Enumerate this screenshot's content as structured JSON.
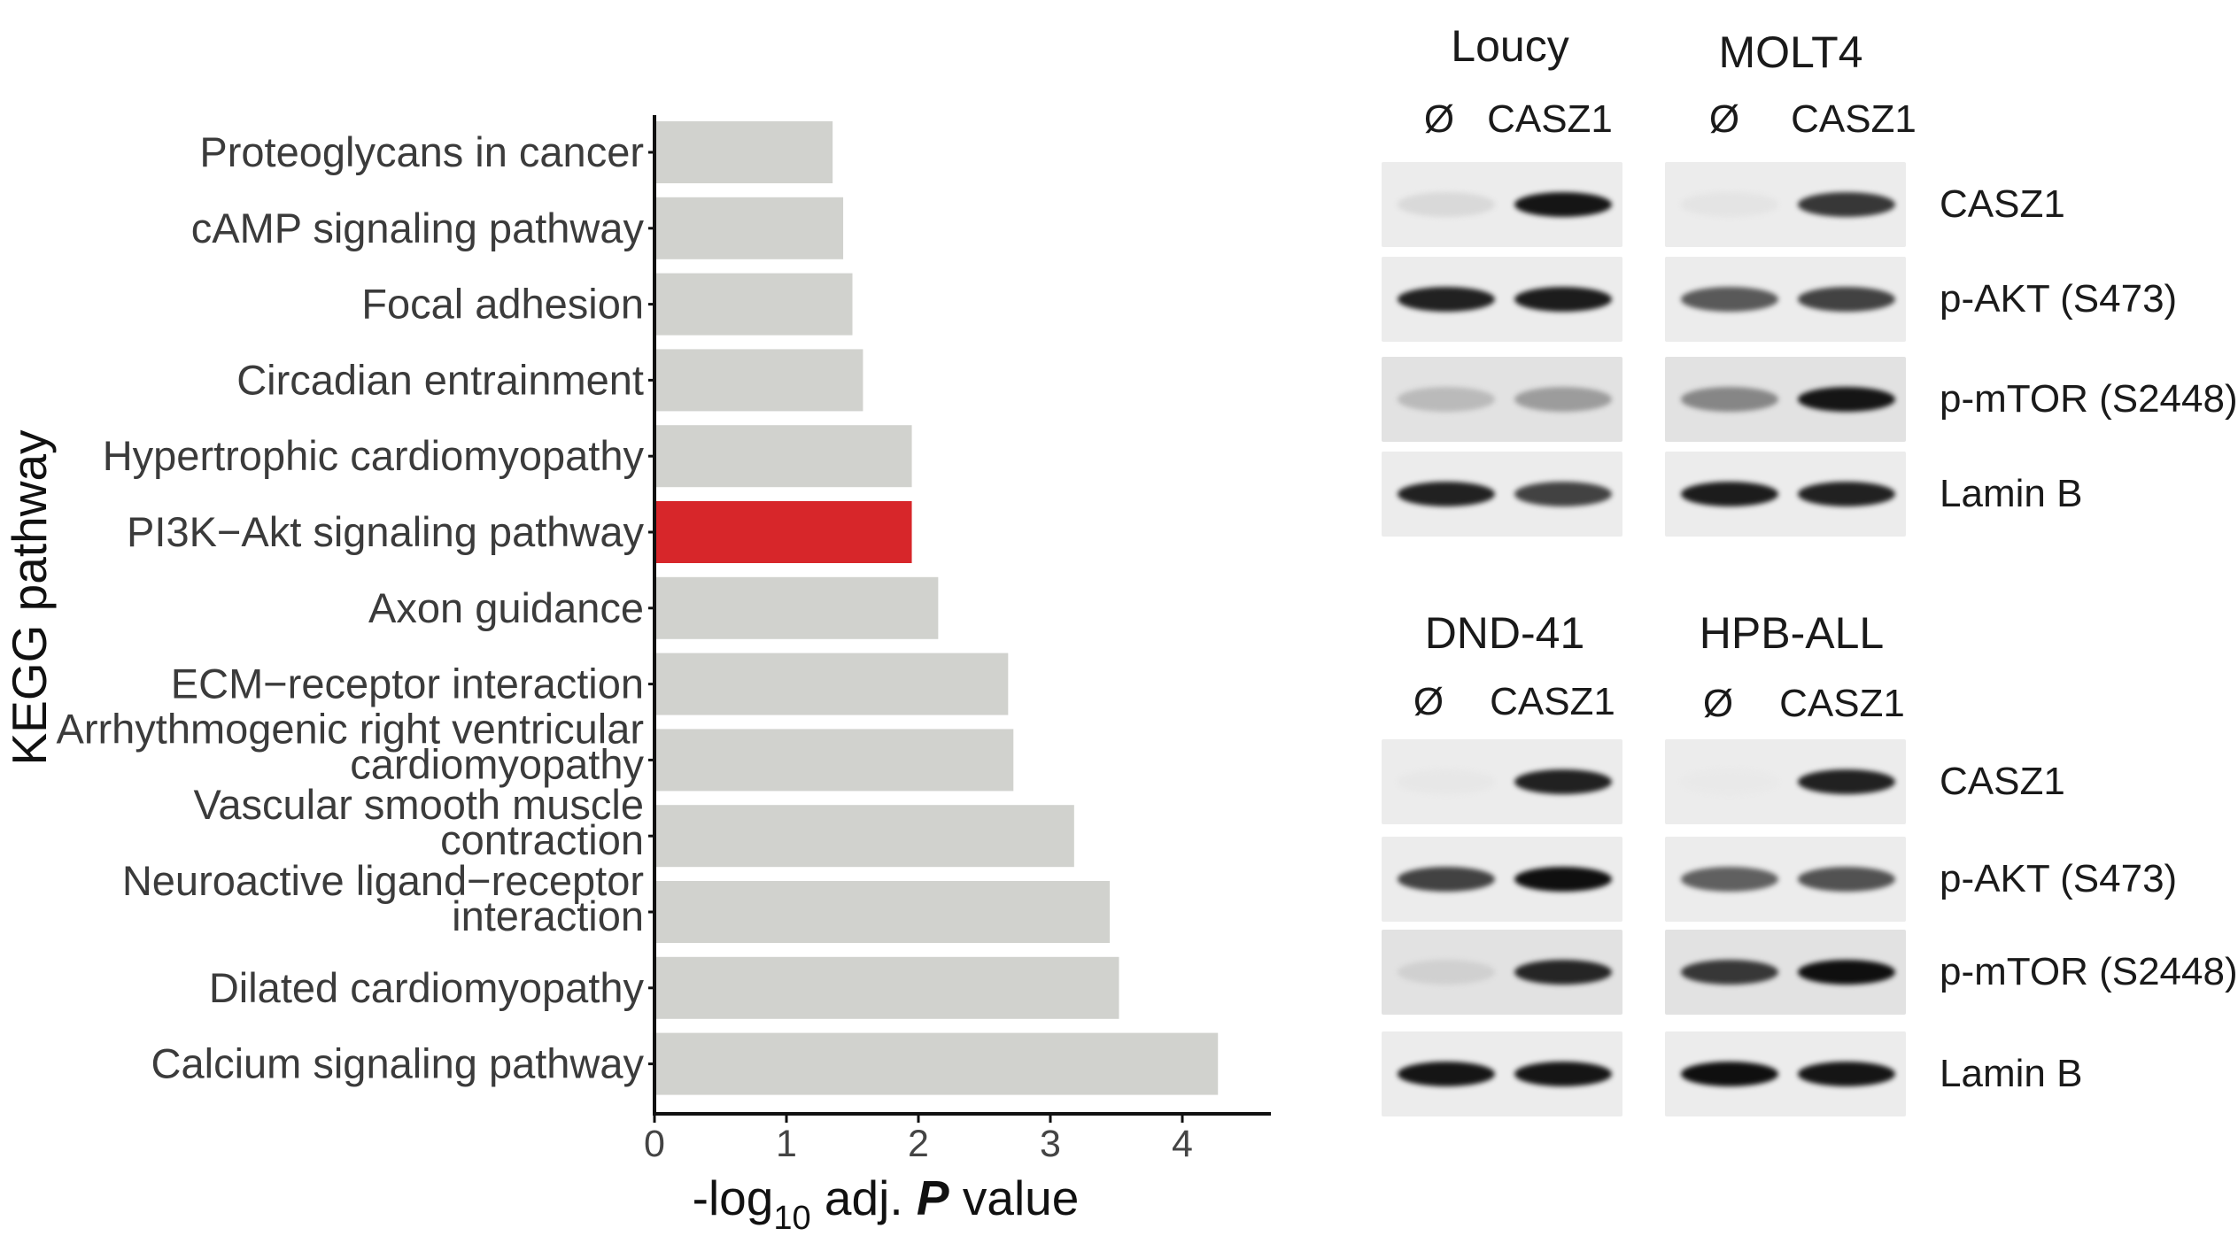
{
  "chart_data": {
    "type": "bar",
    "orientation": "horizontal",
    "ylabel": "KEGG pathway",
    "xlabel_parts": {
      "prefix": "-log",
      "subscript": "10",
      "mid": " adj. ",
      "italic": "P",
      "suffix": " value"
    },
    "xlim": [
      0,
      4.7
    ],
    "xticks": [
      "0",
      "1",
      "2",
      "3",
      "4"
    ],
    "grid": false,
    "categories": [
      [
        "Proteoglycans in cancer"
      ],
      [
        "cAMP signaling pathway"
      ],
      [
        "Focal adhesion"
      ],
      [
        "Circadian entrainment"
      ],
      [
        "Hypertrophic cardiomyopathy"
      ],
      [
        "PI3K−Akt signaling pathway"
      ],
      [
        "Axon guidance"
      ],
      [
        "ECM−receptor interaction"
      ],
      [
        "Arrhythmogenic right ventricular",
        "cardiomyopathy"
      ],
      [
        "Vascular smooth muscle",
        "contraction"
      ],
      [
        "Neuroactive ligand−receptor",
        "interaction"
      ],
      [
        "Dilated cardiomyopathy"
      ],
      [
        "Calcium signaling pathway"
      ]
    ],
    "values": [
      1.35,
      1.43,
      1.5,
      1.58,
      1.95,
      1.95,
      2.15,
      2.68,
      2.72,
      3.18,
      3.45,
      3.52,
      4.27
    ],
    "highlight_index": 5,
    "colors": {
      "bar": "#d1d2ce",
      "highlight": "#d7262a",
      "axis": "#111111",
      "text": "#3b3b3b"
    }
  },
  "western_blots": {
    "lane_labels": [
      "Ø",
      "CASZ1"
    ],
    "row_labels": [
      "CASZ1",
      "p-AKT (S473)",
      "p-mTOR (S2448)",
      "Lamin B"
    ],
    "cell_lines": [
      "Loucy",
      "MOLT4",
      "DND-41",
      "HPB-ALL"
    ]
  }
}
